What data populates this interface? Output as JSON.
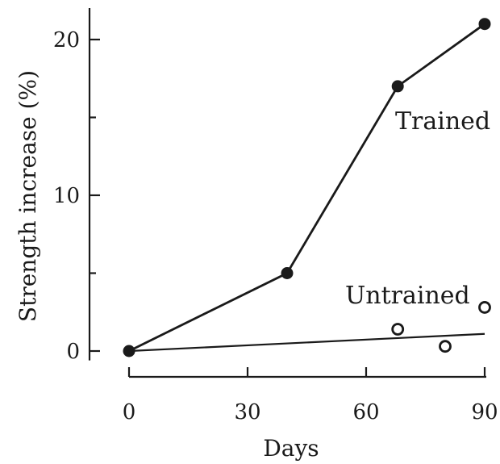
{
  "chart_data": {
    "type": "line",
    "title": "",
    "xlabel": "Days",
    "ylabel": "Strength increase (%)",
    "xlim": [
      0,
      90
    ],
    "ylim": [
      0,
      22
    ],
    "xticks": [
      0,
      30,
      60,
      90
    ],
    "yticks": [
      0,
      10,
      20
    ],
    "grid": false,
    "series": [
      {
        "name": "Trained",
        "style": "filled-markers-with-line",
        "points": [
          {
            "x": 0,
            "y": 0
          },
          {
            "x": 40,
            "y": 5
          },
          {
            "x": 68,
            "y": 17
          },
          {
            "x": 90,
            "y": 21
          }
        ]
      },
      {
        "name": "Untrained",
        "style": "open-markers",
        "points": [
          {
            "x": 68,
            "y": 1.4
          },
          {
            "x": 80,
            "y": 0.3
          },
          {
            "x": 90,
            "y": 2.8
          }
        ],
        "fit_line": [
          {
            "x": 0,
            "y": 0
          },
          {
            "x": 90,
            "y": 1.1
          }
        ]
      }
    ]
  }
}
